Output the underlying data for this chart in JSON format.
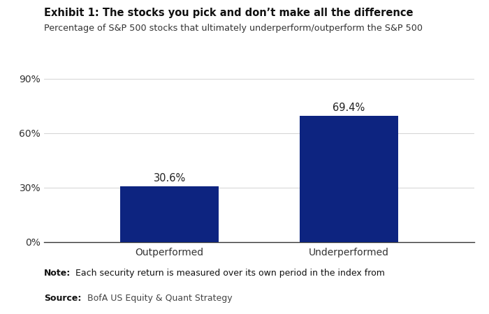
{
  "title_bold": "Exhibit 1: The stocks you pick and don’t make all the difference",
  "subtitle": "Percentage of S&P 500 stocks that ultimately underperform/outperform the S&P 500",
  "categories": [
    "Outperformed",
    "Underperformed"
  ],
  "values": [
    30.6,
    69.4
  ],
  "labels": [
    "30.6%",
    "69.4%"
  ],
  "bar_color": "#0d2480",
  "ylim": [
    0,
    90
  ],
  "yticks": [
    0,
    30,
    60,
    90
  ],
  "ytick_labels": [
    "0%",
    "30%",
    "60%",
    "90%"
  ],
  "note_bold": "Note:",
  "note_rest": " Each security return is measured over its own period in the index from",
  "source_bold": "Source:",
  "source_rest": " BofA US Equity & Quant Strategy",
  "background_color": "#ffffff",
  "bar_width": 0.55
}
